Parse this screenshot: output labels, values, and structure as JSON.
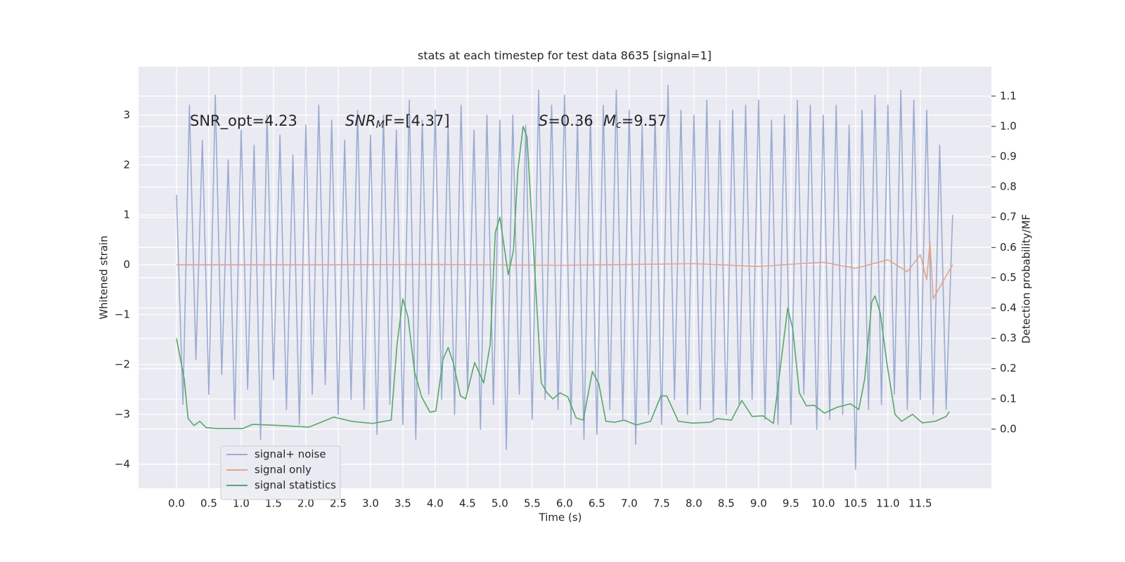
{
  "chart_data": {
    "type": "line",
    "title": "stats at each timestep for test data 8635 [signal=1]",
    "x_label": "Time (s)",
    "y_label": "Whitened strain",
    "y2_label": "Detection probability/MF",
    "annotations": [
      {
        "text": "SNR_opt=4.23"
      },
      {
        "text": "SNR",
        "sub": "M",
        "tail": "F=[4.37]"
      },
      {
        "text": "S",
        "tail": "=0.36"
      },
      {
        "text": "M",
        "sub": "c",
        "tail": "=9.57"
      }
    ],
    "xlim": [
      -0.587,
      12.6
    ],
    "ylim": [
      -4.48,
      3.97
    ],
    "y2lim": [
      -0.195,
      1.197
    ],
    "xticks": [
      {
        "value": 0,
        "label": "0.0"
      },
      0.5,
      {
        "value": 1,
        "label": "1.0"
      },
      1.5,
      {
        "value": 2,
        "label": "2.0"
      },
      2.5,
      {
        "value": 3,
        "label": "3.0"
      },
      3.5,
      {
        "value": 4,
        "label": "4.0"
      },
      4.5,
      {
        "value": 5,
        "label": "5.0"
      },
      5.5,
      {
        "value": 6,
        "label": "6.0"
      },
      6.5,
      {
        "value": 7,
        "label": "7.0"
      },
      7.5,
      {
        "value": 8,
        "label": "8.0"
      },
      8.5,
      {
        "value": 9,
        "label": "9.0"
      },
      9.5,
      {
        "value": 10,
        "label": "10.0"
      },
      10.5,
      {
        "value": 11,
        "label": "11.0"
      },
      11.5
    ],
    "yticks": [
      {
        "value": -4,
        "label": "−4"
      },
      {
        "value": -3,
        "label": "−3"
      },
      {
        "value": -2,
        "label": "−2"
      },
      {
        "value": -1,
        "label": "−1"
      },
      0,
      1,
      2,
      3
    ],
    "y2ticks": [
      {
        "value": 0,
        "label": "0.0"
      },
      0.1,
      0.2,
      0.3,
      0.4,
      0.5,
      0.6,
      0.7,
      0.8,
      0.9,
      {
        "value": 1,
        "label": "1.0"
      },
      1.1
    ],
    "grid": true,
    "legend": "lower left",
    "series": [
      {
        "name": "signal+ noise",
        "color": "#9aacd1",
        "x": [
          0,
          0.1,
          0.2,
          0.3,
          0.4,
          0.5,
          0.6,
          0.7,
          0.8,
          0.9,
          1,
          1.1,
          1.2,
          1.3,
          1.4,
          1.5,
          1.6,
          1.7,
          1.8,
          1.9,
          2,
          2.1,
          2.2,
          2.3,
          2.4,
          2.5,
          2.6,
          2.7,
          2.8,
          2.9,
          3,
          3.1,
          3.2,
          3.3,
          3.4,
          3.5,
          3.6,
          3.7,
          3.8,
          3.9,
          4,
          4.1,
          4.2,
          4.3,
          4.4,
          4.5,
          4.6,
          4.7,
          4.8,
          4.9,
          5,
          5.1,
          5.2,
          5.3,
          5.4,
          5.5,
          5.6,
          5.7,
          5.8,
          5.9,
          6,
          6.1,
          6.2,
          6.3,
          6.4,
          6.5,
          6.6,
          6.7,
          6.8,
          6.9,
          7,
          7.1,
          7.2,
          7.3,
          7.4,
          7.5,
          7.6,
          7.7,
          7.8,
          7.9,
          8,
          8.1,
          8.2,
          8.3,
          8.4,
          8.5,
          8.6,
          8.7,
          8.8,
          8.9,
          9,
          9.1,
          9.2,
          9.3,
          9.4,
          9.5,
          9.6,
          9.7,
          9.8,
          9.9,
          10,
          10.1,
          10.2,
          10.3,
          10.4,
          10.5,
          10.6,
          10.7,
          10.8,
          10.9,
          11,
          11.1,
          11.2,
          11.3,
          11.4,
          11.5,
          11.6,
          11.7,
          11.8,
          11.9,
          12
        ],
        "values": [
          1.4,
          -2.8,
          3.2,
          -1.9,
          2.5,
          -2.6,
          3.4,
          -2.2,
          2.1,
          -3.1,
          2.7,
          -2.5,
          2.4,
          -3.5,
          3.0,
          -2.3,
          2.6,
          -2.9,
          2.2,
          -3.2,
          2.8,
          -2.6,
          3.2,
          -2.4,
          2.9,
          -3.0,
          2.5,
          -2.7,
          3.1,
          -2.9,
          2.6,
          -3.4,
          3.0,
          -2.8,
          2.7,
          -3.2,
          3.3,
          -3.5,
          2.9,
          -2.6,
          3.1,
          -2.7,
          2.8,
          -3.0,
          3.2,
          -2.5,
          2.7,
          -3.3,
          3.0,
          -2.8,
          2.9,
          -3.7,
          3.0,
          -2.6,
          2.8,
          -3.1,
          3.5,
          -2.7,
          3.2,
          -2.9,
          3.4,
          -3.2,
          2.9,
          -3.5,
          3.0,
          -3.4,
          3.2,
          -2.9,
          3.5,
          -3.1,
          3.1,
          -3.6,
          2.8,
          -3.0,
          3.0,
          -3.2,
          3.6,
          -2.7,
          3.1,
          -3.0,
          3.0,
          -2.9,
          3.3,
          -3.1,
          2.9,
          -3.0,
          3.1,
          -2.8,
          3.2,
          -2.7,
          3.3,
          -3.1,
          2.9,
          -3.2,
          3.0,
          -3.2,
          3.3,
          -2.6,
          3.2,
          -3.3,
          3.0,
          -3.1,
          3.2,
          -3.0,
          2.8,
          -4.1,
          3.1,
          -2.9,
          3.4,
          -2.8,
          3.2,
          -2.6,
          3.5,
          -2.9,
          3.3,
          -2.7,
          3.1,
          -3.0,
          2.4,
          -2.9,
          1.0
        ]
      },
      {
        "name": "signal only",
        "color": "#e3a58a",
        "x": [
          0,
          2,
          4,
          6,
          8,
          9,
          10,
          10.5,
          11,
          11.3,
          11.5,
          11.6,
          11.65,
          11.7,
          12
        ],
        "values": [
          0,
          0,
          0.005,
          -0.01,
          0.02,
          -0.03,
          0.05,
          -0.07,
          0.1,
          -0.14,
          0.2,
          -0.3,
          0.45,
          -0.68,
          0
        ]
      },
      {
        "name": "signal statistics",
        "color": "#55a868",
        "axis": "y2",
        "x": [
          0,
          0.12,
          0.18,
          0.27,
          0.36,
          0.46,
          0.64,
          1.02,
          1.18,
          1.62,
          2.05,
          2.27,
          2.43,
          2.71,
          3.03,
          3.32,
          3.41,
          3.5,
          3.58,
          3.68,
          3.79,
          3.92,
          4.01,
          4.12,
          4.2,
          4.28,
          4.39,
          4.47,
          4.61,
          4.75,
          4.85,
          4.93,
          5.0,
          5.13,
          5.21,
          5.28,
          5.36,
          5.42,
          5.64,
          5.73,
          5.82,
          5.93,
          6.05,
          6.18,
          6.29,
          6.43,
          6.53,
          6.64,
          6.78,
          6.92,
          7.11,
          7.33,
          7.49,
          7.58,
          7.76,
          7.98,
          8.25,
          8.36,
          8.58,
          8.74,
          8.9,
          9.07,
          9.23,
          9.45,
          9.53,
          9.63,
          9.74,
          9.86,
          10.02,
          10.21,
          10.42,
          10.55,
          10.64,
          10.75,
          10.8,
          10.88,
          10.99,
          11.11,
          11.21,
          11.38,
          11.53,
          11.73,
          11.9,
          11.95
        ],
        "values": [
          0.3,
          0.165,
          0.035,
          0.012,
          0.026,
          0.005,
          0.002,
          0.002,
          0.016,
          0.012,
          0.007,
          0.026,
          0.04,
          0.026,
          0.019,
          0.03,
          0.28,
          0.43,
          0.37,
          0.19,
          0.107,
          0.056,
          0.06,
          0.23,
          0.27,
          0.22,
          0.11,
          0.1,
          0.22,
          0.153,
          0.28,
          0.65,
          0.7,
          0.51,
          0.59,
          0.86,
          1.0,
          0.965,
          0.153,
          0.12,
          0.1,
          0.12,
          0.107,
          0.037,
          0.03,
          0.19,
          0.15,
          0.026,
          0.023,
          0.03,
          0.014,
          0.026,
          0.11,
          0.11,
          0.026,
          0.02,
          0.023,
          0.035,
          0.03,
          0.095,
          0.042,
          0.044,
          0.019,
          0.4,
          0.33,
          0.12,
          0.077,
          0.079,
          0.053,
          0.072,
          0.084,
          0.065,
          0.165,
          0.42,
          0.44,
          0.385,
          0.21,
          0.049,
          0.026,
          0.049,
          0.021,
          0.026,
          0.042,
          0.058
        ]
      }
    ]
  }
}
